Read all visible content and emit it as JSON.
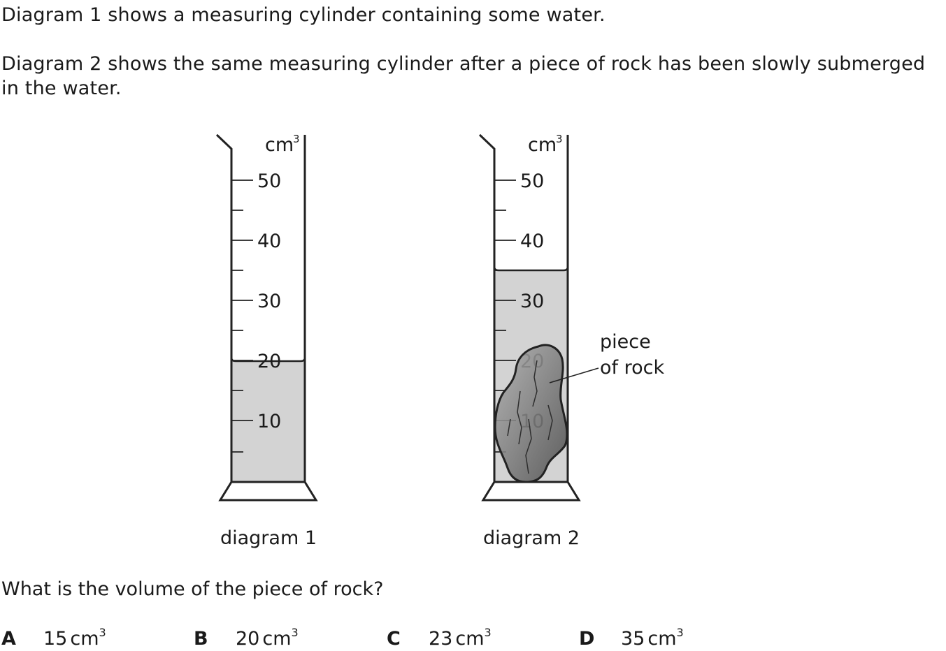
{
  "intro": {
    "paragraph1": "Diagram 1 shows a measuring cylinder containing some water.",
    "paragraph2": "Diagram 2 shows the same measuring cylinder after a piece of rock has been slowly submerged in the water."
  },
  "diagram1": {
    "unit_label": "cm",
    "unit_exponent": "3",
    "scale_labels": [
      "50",
      "40",
      "30",
      "20",
      "10"
    ],
    "water_level_cm3": 20,
    "caption": "diagram 1"
  },
  "diagram2": {
    "unit_label": "cm",
    "unit_exponent": "3",
    "scale_labels": [
      "50",
      "40",
      "30",
      "20",
      "10"
    ],
    "water_level_cm3": 35,
    "rock_label_line1": "piece",
    "rock_label_line2": "of rock",
    "caption": "diagram 2"
  },
  "colors": {
    "water": "#d3d3d3",
    "outline": "#222222",
    "rock_light": "#9a9a9a",
    "rock_dark": "#5a5a5a"
  },
  "question": "What is the volume of the piece of rock?",
  "options": [
    {
      "letter": "A",
      "value": "15",
      "unit": "cm",
      "exp": "3"
    },
    {
      "letter": "B",
      "value": "20",
      "unit": "cm",
      "exp": "3"
    },
    {
      "letter": "C",
      "value": "23",
      "unit": "cm",
      "exp": "3"
    },
    {
      "letter": "D",
      "value": "35",
      "unit": "cm",
      "exp": "3"
    }
  ]
}
